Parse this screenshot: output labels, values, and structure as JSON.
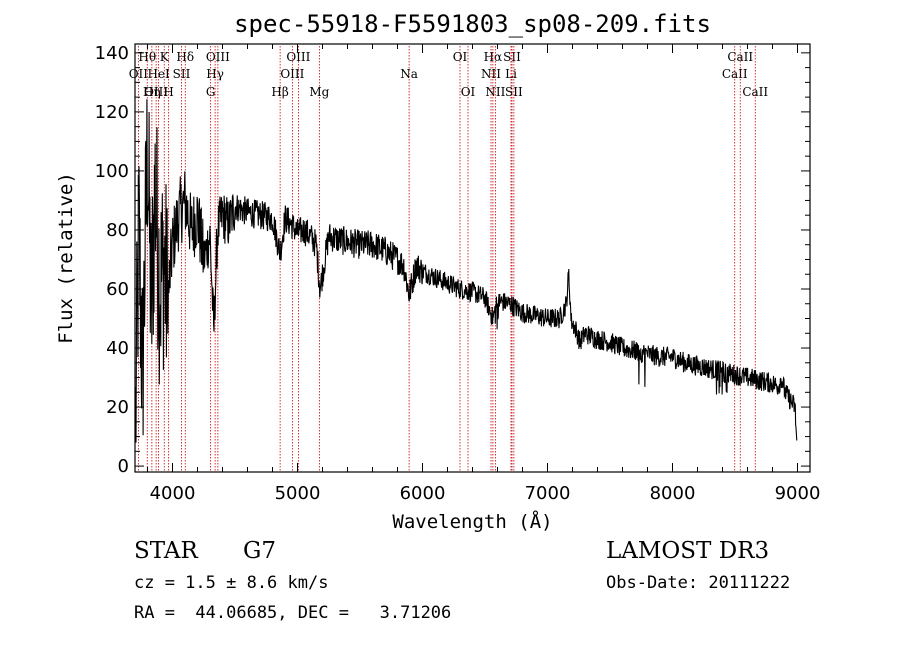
{
  "chart_data": {
    "type": "line",
    "title": "spec-55918-F5591803_sp08-209.fits",
    "xlabel": "Wavelength (Å)",
    "ylabel": "Flux (relative)",
    "xlim": [
      3700,
      9100
    ],
    "ylim": [
      -2,
      143
    ],
    "xticks": [
      4000,
      5000,
      6000,
      7000,
      8000,
      9000
    ],
    "yticks": [
      0,
      20,
      40,
      60,
      80,
      100,
      120,
      140
    ],
    "spectrum_anchors": {
      "x": [
        3700,
        3730,
        3760,
        3800,
        3830,
        3860,
        3900,
        3930,
        3960,
        4000,
        4050,
        4100,
        4150,
        4200,
        4250,
        4300,
        4330,
        4360,
        4400,
        4450,
        4500,
        4600,
        4700,
        4800,
        4861,
        4900,
        4950,
        5000,
        5050,
        5100,
        5150,
        5180,
        5250,
        5300,
        5400,
        5500,
        5600,
        5700,
        5800,
        5850,
        5893,
        5950,
        6000,
        6100,
        6200,
        6300,
        6400,
        6500,
        6563,
        6600,
        6700,
        6800,
        6900,
        7000,
        7100,
        7150,
        7170,
        7190,
        7220,
        7260,
        7300,
        7400,
        7500,
        7600,
        7700,
        7800,
        7900,
        8000,
        8100,
        8200,
        8300,
        8400,
        8500,
        8600,
        8700,
        8800,
        8850,
        8870,
        8900,
        8980,
        9000
      ],
      "y": [
        2,
        80,
        30,
        110,
        50,
        95,
        60,
        70,
        55,
        75,
        85,
        90,
        80,
        85,
        70,
        78,
        45,
        80,
        85,
        82,
        88,
        86,
        85,
        84,
        72,
        84,
        82,
        79,
        80,
        78,
        75,
        60,
        78,
        77,
        76,
        75,
        75,
        73,
        70,
        68,
        58,
        68,
        66,
        64,
        62,
        60,
        59,
        57,
        50,
        56,
        55,
        52,
        51,
        50,
        50,
        55,
        65,
        49,
        47,
        42,
        45,
        43,
        42,
        40,
        39,
        38,
        37,
        37,
        35,
        34,
        33,
        32,
        31,
        30,
        29,
        28,
        27,
        30,
        25,
        20,
        3
      ]
    },
    "spectral_lines": [
      {
        "label": "Hθ",
        "x": 3798,
        "row": 1
      },
      {
        "label": "OII",
        "x": 3727,
        "row": 2
      },
      {
        "label": "OIII",
        "x": 3869,
        "row": 3
      },
      {
        "label": "Hη",
        "x": 3835,
        "row": 3
      },
      {
        "label": "K",
        "x": 3934,
        "row": 1
      },
      {
        "label": "HeI",
        "x": 3889,
        "row": 2
      },
      {
        "label": "H",
        "x": 3969,
        "row": 3
      },
      {
        "label": "Hδ",
        "x": 4102,
        "row": 1
      },
      {
        "label": "SII",
        "x": 4072,
        "row": 2
      },
      {
        "label": "OIII",
        "x": 4363,
        "row": 1
      },
      {
        "label": "Hγ",
        "x": 4341,
        "row": 2
      },
      {
        "label": "G",
        "x": 4305,
        "row": 3
      },
      {
        "label": "OIII",
        "x": 5007,
        "row": 1
      },
      {
        "label": "OIII",
        "x": 4959,
        "row": 2
      },
      {
        "label": "Hβ",
        "x": 4861,
        "row": 3
      },
      {
        "label": "Mg",
        "x": 5175,
        "row": 3
      },
      {
        "label": "Na",
        "x": 5893,
        "row": 2
      },
      {
        "label": "OI",
        "x": 6300,
        "row": 1
      },
      {
        "label": "OI",
        "x": 6364,
        "row": 3
      },
      {
        "label": "Hα",
        "x": 6563,
        "row": 1
      },
      {
        "label": "NII",
        "x": 6548,
        "row": 2
      },
      {
        "label": "NII",
        "x": 6583,
        "row": 3
      },
      {
        "label": "SII",
        "x": 6716,
        "row": 1
      },
      {
        "label": "Li",
        "x": 6708,
        "row": 2
      },
      {
        "label": "SII",
        "x": 6731,
        "row": 3
      },
      {
        "label": "CaII",
        "x": 8498,
        "row": 2
      },
      {
        "label": "CaII",
        "x": 8542,
        "row": 1
      },
      {
        "label": "CaII",
        "x": 8662,
        "row": 3
      }
    ],
    "line_color": "#cc0000",
    "spectrum_color": "#000000"
  },
  "info": {
    "object_class": "STAR",
    "subclass": "G7",
    "redshift_text": "cz = 1.5 ± 8.6 km/s",
    "coords_text": "RA =  44.06685, DEC =   3.71206",
    "survey": "LAMOST DR3",
    "obs_date_text": "Obs-Date: 20111222"
  }
}
